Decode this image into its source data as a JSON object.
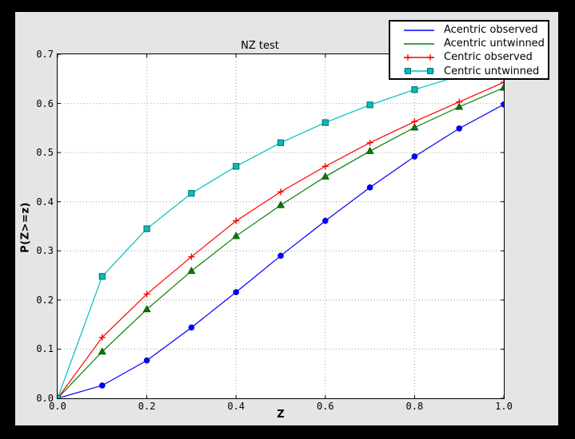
{
  "figure": {
    "frame_color": "#000000",
    "background": "#e5e5e5",
    "plot_background": "#ffffff",
    "grid_color": "#9c9c9c",
    "spine_color": "#000000"
  },
  "chart_data": {
    "type": "line",
    "title": "NZ test",
    "xlabel": "Z",
    "ylabel": "P(Z>=z)",
    "xlim": [
      0.0,
      1.0
    ],
    "ylim": [
      0.0,
      0.7
    ],
    "xticks": [
      0.0,
      0.2,
      0.4,
      0.6,
      0.8,
      1.0
    ],
    "xtick_labels": [
      "0.0",
      "0.2",
      "0.4",
      "0.6",
      "0.8",
      "1.0"
    ],
    "yticks": [
      0.0,
      0.1,
      0.2,
      0.3,
      0.4,
      0.5,
      0.6,
      0.7
    ],
    "ytick_labels": [
      "0.0",
      "0.1",
      "0.2",
      "0.3",
      "0.4",
      "0.5",
      "0.6",
      "0.7"
    ],
    "grid": true,
    "grid_style": "dotted",
    "legend_position": "upper right",
    "x": [
      0.0,
      0.1,
      0.2,
      0.3,
      0.4,
      0.5,
      0.6,
      0.7,
      0.8,
      0.9,
      1.0
    ],
    "series": [
      {
        "name": "Acentric observed",
        "color": "#0000ff",
        "edge": "#0000bb",
        "marker": "circle",
        "legend_marker": "none",
        "values": [
          0.0,
          0.026,
          0.077,
          0.144,
          0.216,
          0.29,
          0.361,
          0.429,
          0.492,
          0.549,
          0.598
        ]
      },
      {
        "name": "Acentric untwinned",
        "color": "#008000",
        "edge": "#004400",
        "marker": "triangle",
        "legend_marker": "none",
        "values": [
          0.0,
          0.095,
          0.181,
          0.259,
          0.33,
          0.393,
          0.451,
          0.503,
          0.551,
          0.593,
          0.632
        ]
      },
      {
        "name": "Centric observed",
        "color": "#ff0000",
        "edge": "#ff0000",
        "marker": "plus",
        "legend_marker": "plus",
        "values": [
          0.0,
          0.124,
          0.212,
          0.288,
          0.361,
          0.42,
          0.472,
          0.52,
          0.563,
          0.603,
          0.643
        ]
      },
      {
        "name": "Centric untwinned",
        "color": "#00bfbf",
        "edge": "#006666",
        "marker": "square",
        "legend_marker": "square",
        "values": [
          0.0,
          0.248,
          0.345,
          0.417,
          0.472,
          0.52,
          0.561,
          0.597,
          0.628,
          0.656,
          0.683
        ]
      }
    ]
  }
}
